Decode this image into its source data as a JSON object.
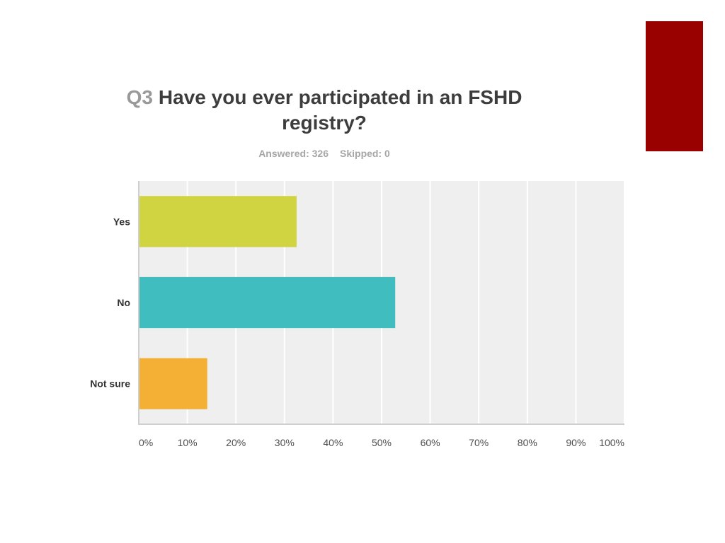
{
  "accent_color": "#990000",
  "question": {
    "number": "Q3",
    "text": "Have you ever participated in an FSHD registry?"
  },
  "stats": {
    "answered": "Answered: 326",
    "skipped": "Skipped: 0"
  },
  "chart_data": {
    "type": "bar",
    "orientation": "horizontal",
    "categories": [
      "Yes",
      "No",
      "Not sure"
    ],
    "values": [
      32.5,
      52.8,
      14.1
    ],
    "colors": [
      "#d0d440",
      "#3fbdbf",
      "#f4b034"
    ],
    "xlim": [
      0,
      100
    ],
    "x_ticks": [
      "0%",
      "10%",
      "20%",
      "30%",
      "40%",
      "50%",
      "60%",
      "70%",
      "80%",
      "90%",
      "100%"
    ],
    "grid": true,
    "background": "#efefef"
  }
}
